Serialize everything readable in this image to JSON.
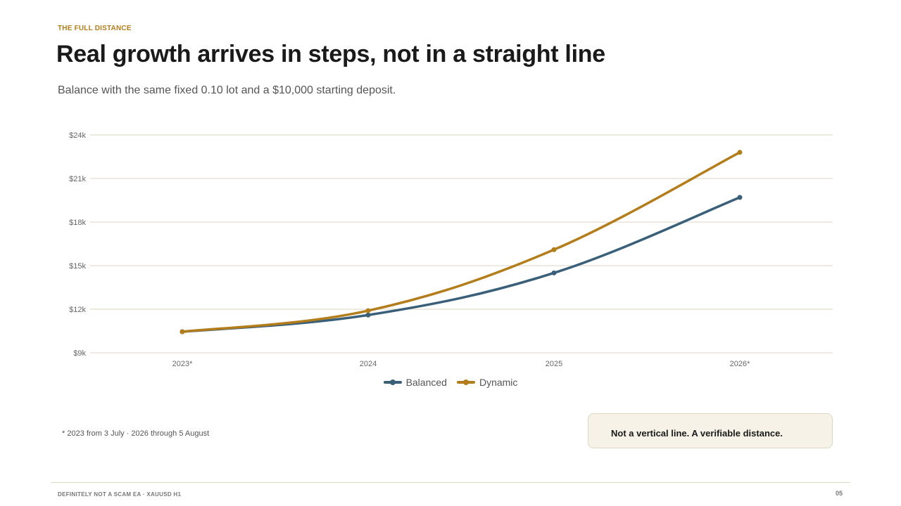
{
  "slide": {
    "eyebrow": "THE FULL DISTANCE",
    "title": "Real growth arrives in steps, not in a straight line",
    "subtitle": "Balance with the same fixed 0.10 lot and a $10,000 starting deposit.",
    "footnote": "* 2023 from 3 July · 2026 through 5 August",
    "callout": "Not a vertical line. A verifiable distance.",
    "footer_left": "DEFINITELY NOT A SCAM EA · XAUUSD H1",
    "page_number": "05"
  },
  "colors": {
    "accent": "#b37d1c",
    "balanced": "#3a5f78",
    "dynamic": "#b37d1c",
    "grid": "#ddd6c3"
  },
  "chart_data": {
    "type": "line",
    "categories": [
      "2023*",
      "2024",
      "2025",
      "2026*"
    ],
    "series": [
      {
        "name": "Balanced",
        "values": [
          10450,
          11600,
          14500,
          19700
        ]
      },
      {
        "name": "Dynamic",
        "values": [
          10450,
          11900,
          16100,
          22800
        ]
      }
    ],
    "ylim": [
      9000,
      24000
    ],
    "yticks": [
      9000,
      12000,
      15000,
      18000,
      21000,
      24000
    ],
    "ytick_labels": [
      "$9k",
      "$12k",
      "$15k",
      "$18k",
      "$21k",
      "$24k"
    ],
    "grid": true,
    "legend_position": "bottom-center",
    "title": "",
    "xlabel": "",
    "ylabel": ""
  }
}
